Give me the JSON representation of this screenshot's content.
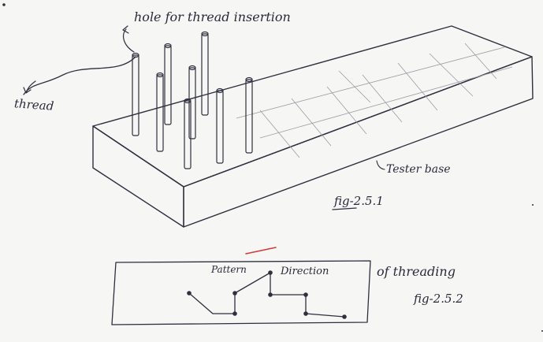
{
  "figure1": {
    "label_hole": "hole for thread insertion",
    "label_thread": "thread",
    "label_base": "Tester base",
    "caption": "fig-2.5.1"
  },
  "figure2": {
    "label_pattern": "Pattern",
    "label_direction": "Direction",
    "label_of_threading": "of threading",
    "caption": "fig-2.5.2"
  },
  "colors": {
    "ink": "#2f2f3f",
    "paper": "#f6f6f4",
    "accent": "#d23a3a"
  }
}
